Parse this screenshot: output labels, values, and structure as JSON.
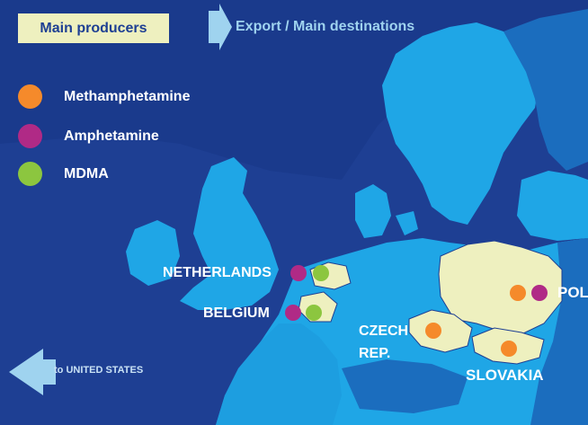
{
  "header": {
    "badge_label": "Main producers",
    "export_label": "Export / Main destinations"
  },
  "legend": [
    {
      "label": "Methamphetamine",
      "color": "#f58a2b"
    },
    {
      "label": "Amphetamine",
      "color": "#b02a86"
    },
    {
      "label": "MDMA",
      "color": "#8cc63f"
    }
  ],
  "countries": {
    "netherlands": "NETHERLANDS",
    "belgium": "BELGIUM",
    "czech_line1": "CZECH",
    "czech_line2": "REP.",
    "slovakia": "SLOVAKIA",
    "poland": "POL"
  },
  "to_us_label": "to UNITED STATES",
  "colors": {
    "sea": "#1e3f93",
    "land": "#1fa6e6",
    "land_dark": "#1b6dbe",
    "producer": "#eef0bf",
    "arrow": "#9fd3ef"
  }
}
